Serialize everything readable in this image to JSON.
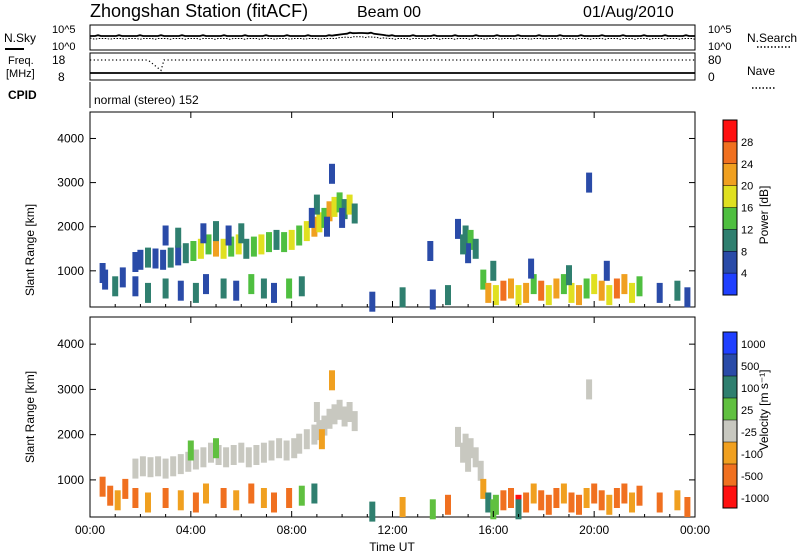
{
  "header": {
    "station": "Zhongshan Station (fitACF)",
    "beam": "Beam 00",
    "date": "01/Aug/2010"
  },
  "strip_panels": {
    "nsky_label": "N.Sky",
    "nsearch_label": "N.Search",
    "freq_label_line1": "Freq.",
    "freq_label_line2": "[MHz]",
    "nave_label": "Nave",
    "cpid_label": "CPID",
    "nsky_ticks": [
      "10^5",
      "10^0"
    ],
    "nsearch_ticks": [
      "10^5",
      "10^0"
    ],
    "freq_ticks": [
      "18",
      "8"
    ],
    "nave_ticks": [
      "80",
      "0"
    ],
    "mode_text": "normal (stereo) 152"
  },
  "colors": {
    "power": [
      "#2040ff",
      "#2a4ba8",
      "#2f7f6f",
      "#4fbf40",
      "#e0e020",
      "#f0a020",
      "#f07020",
      "#ff1010"
    ],
    "velocity": [
      "#ff1010",
      "#f07020",
      "#f0a020",
      "#c8c8c0",
      "#60c040",
      "#2f7f6f",
      "#2a4ba8",
      "#2040ff"
    ]
  },
  "chart_data": [
    {
      "type": "heatmap",
      "name": "power-panel",
      "ylabel": "Slant Range [km]",
      "xlabel": "",
      "x_ticks": [
        "00:00",
        "04:00",
        "08:00",
        "12:00",
        "16:00",
        "20:00",
        "00:00"
      ],
      "x_tick_hours": [
        0,
        4,
        8,
        12,
        16,
        20,
        24
      ],
      "xlim": [
        0,
        24
      ],
      "y_ticks": [
        1000,
        2000,
        3000,
        4000
      ],
      "ylim": [
        180,
        4600
      ],
      "colorbar_label": "Power [dB]",
      "colorbar_ticks": [
        "4",
        "8",
        "12",
        "16",
        "20",
        "24",
        "28"
      ],
      "cells": [
        [
          0.5,
          950,
          1
        ],
        [
          0.6,
          800,
          1
        ],
        [
          1.0,
          650,
          2
        ],
        [
          1.3,
          850,
          1
        ],
        [
          1.8,
          650,
          1
        ],
        [
          2.3,
          500,
          2
        ],
        [
          3.0,
          600,
          2
        ],
        [
          3.6,
          550,
          1
        ],
        [
          4.2,
          500,
          2
        ],
        [
          4.6,
          700,
          1
        ],
        [
          5.3,
          600,
          2
        ],
        [
          5.8,
          550,
          1
        ],
        [
          6.4,
          700,
          3
        ],
        [
          6.9,
          600,
          2
        ],
        [
          7.3,
          500,
          1
        ],
        [
          7.9,
          600,
          3
        ],
        [
          8.4,
          650,
          2
        ],
        [
          1.8,
          1200,
          1
        ],
        [
          2.0,
          1250,
          1
        ],
        [
          2.3,
          1300,
          2
        ],
        [
          2.6,
          1280,
          1
        ],
        [
          2.9,
          1250,
          1
        ],
        [
          3.2,
          1300,
          2
        ],
        [
          3.5,
          1350,
          1
        ],
        [
          3.8,
          1400,
          2
        ],
        [
          4.1,
          1450,
          3
        ],
        [
          4.4,
          1500,
          4
        ],
        [
          4.7,
          1600,
          3
        ],
        [
          5.0,
          1550,
          5
        ],
        [
          5.3,
          1500,
          4
        ],
        [
          5.6,
          1550,
          3
        ],
        [
          5.9,
          1600,
          4
        ],
        [
          6.2,
          1500,
          2
        ],
        [
          6.5,
          1550,
          3
        ],
        [
          6.8,
          1600,
          4
        ],
        [
          7.1,
          1650,
          3
        ],
        [
          7.4,
          1700,
          2
        ],
        [
          7.7,
          1650,
          3
        ],
        [
          8.0,
          1700,
          4
        ],
        [
          3.0,
          1800,
          1
        ],
        [
          3.5,
          1750,
          2
        ],
        [
          4.5,
          1850,
          1
        ],
        [
          5.0,
          1900,
          2
        ],
        [
          5.5,
          1800,
          1
        ],
        [
          6.0,
          1850,
          2
        ],
        [
          8.3,
          1800,
          3
        ],
        [
          8.6,
          1900,
          4
        ],
        [
          8.9,
          2000,
          5
        ],
        [
          9.1,
          2100,
          4
        ],
        [
          9.3,
          2200,
          3
        ],
        [
          9.5,
          2350,
          5
        ],
        [
          9.7,
          2450,
          4
        ],
        [
          9.9,
          2550,
          3
        ],
        [
          10.1,
          2400,
          2
        ],
        [
          10.3,
          2500,
          4
        ],
        [
          10.5,
          2300,
          2
        ],
        [
          9.0,
          2500,
          2
        ],
        [
          9.4,
          2000,
          1
        ],
        [
          8.8,
          2200,
          1
        ],
        [
          10.0,
          2200,
          1
        ],
        [
          14.6,
          1950,
          1
        ],
        [
          14.9,
          1800,
          2
        ],
        [
          15.1,
          1700,
          3
        ],
        [
          15.3,
          1500,
          2
        ],
        [
          15.0,
          1400,
          1
        ],
        [
          14.8,
          1600,
          2
        ],
        [
          13.5,
          1450,
          1
        ],
        [
          15.6,
          800,
          3
        ],
        [
          15.8,
          500,
          5
        ],
        [
          16.1,
          450,
          4
        ],
        [
          16.4,
          550,
          6
        ],
        [
          16.7,
          600,
          5
        ],
        [
          17.0,
          450,
          4
        ],
        [
          17.3,
          500,
          5
        ],
        [
          17.6,
          700,
          3
        ],
        [
          17.9,
          550,
          6
        ],
        [
          18.2,
          450,
          4
        ],
        [
          18.5,
          600,
          5
        ],
        [
          18.8,
          700,
          3
        ],
        [
          19.1,
          500,
          4
        ],
        [
          19.4,
          450,
          5
        ],
        [
          19.7,
          600,
          3
        ],
        [
          20.0,
          700,
          4
        ],
        [
          20.3,
          550,
          5
        ],
        [
          20.6,
          450,
          4
        ],
        [
          20.9,
          600,
          6
        ],
        [
          21.2,
          700,
          5
        ],
        [
          21.5,
          500,
          4
        ],
        [
          21.8,
          650,
          3
        ],
        [
          16.0,
          1000,
          2
        ],
        [
          17.5,
          1050,
          1
        ],
        [
          19.0,
          900,
          2
        ],
        [
          20.5,
          1000,
          1
        ],
        [
          11.2,
          300,
          1
        ],
        [
          12.4,
          400,
          2
        ],
        [
          13.6,
          350,
          1
        ],
        [
          14.2,
          450,
          2
        ],
        [
          22.6,
          500,
          1
        ],
        [
          23.3,
          550,
          2
        ],
        [
          23.7,
          400,
          1
        ],
        [
          9.6,
          3200,
          1
        ],
        [
          19.8,
          3000,
          1
        ]
      ]
    },
    {
      "type": "heatmap",
      "name": "velocity-panel",
      "ylabel": "Slant Range [km]",
      "xlabel": "Time UT",
      "x_ticks": [
        "00:00",
        "04:00",
        "08:00",
        "12:00",
        "16:00",
        "20:00",
        "00:00"
      ],
      "x_tick_hours": [
        0,
        4,
        8,
        12,
        16,
        20,
        24
      ],
      "xlim": [
        0,
        24
      ],
      "y_ticks": [
        1000,
        2000,
        3000,
        4000
      ],
      "ylim": [
        180,
        4600
      ],
      "colorbar_label": "Velocity [m s⁻¹]",
      "colorbar_ticks": [
        "1000",
        "500",
        "100",
        "25",
        "-25",
        "-100",
        "-500",
        "-1000"
      ],
      "cells": [
        [
          0.5,
          850,
          1
        ],
        [
          0.8,
          650,
          1
        ],
        [
          1.1,
          550,
          2
        ],
        [
          1.4,
          800,
          1
        ],
        [
          1.8,
          600,
          1
        ],
        [
          2.3,
          500,
          2
        ],
        [
          3.0,
          600,
          1
        ],
        [
          3.6,
          550,
          2
        ],
        [
          4.2,
          500,
          1
        ],
        [
          4.6,
          700,
          2
        ],
        [
          5.3,
          600,
          1
        ],
        [
          5.8,
          550,
          2
        ],
        [
          6.4,
          700,
          1
        ],
        [
          6.9,
          600,
          2
        ],
        [
          7.3,
          500,
          1
        ],
        [
          7.9,
          600,
          1
        ],
        [
          8.4,
          650,
          4
        ],
        [
          8.9,
          700,
          5
        ],
        [
          1.8,
          1250,
          3
        ],
        [
          2.1,
          1300,
          3
        ],
        [
          2.4,
          1280,
          3
        ],
        [
          2.7,
          1300,
          3
        ],
        [
          3.0,
          1250,
          3
        ],
        [
          3.3,
          1300,
          3
        ],
        [
          3.6,
          1350,
          3
        ],
        [
          3.9,
          1400,
          3
        ],
        [
          4.2,
          1450,
          3
        ],
        [
          4.5,
          1500,
          3
        ],
        [
          4.8,
          1600,
          3
        ],
        [
          5.1,
          1550,
          3
        ],
        [
          5.4,
          1500,
          3
        ],
        [
          5.7,
          1550,
          3
        ],
        [
          6.0,
          1600,
          3
        ],
        [
          6.3,
          1500,
          3
        ],
        [
          6.6,
          1550,
          3
        ],
        [
          6.9,
          1600,
          3
        ],
        [
          7.2,
          1650,
          3
        ],
        [
          7.5,
          1700,
          3
        ],
        [
          7.8,
          1650,
          3
        ],
        [
          8.1,
          1700,
          3
        ],
        [
          4.0,
          1650,
          4
        ],
        [
          5.0,
          1700,
          4
        ],
        [
          8.3,
          1800,
          3
        ],
        [
          8.6,
          1900,
          3
        ],
        [
          8.9,
          2000,
          3
        ],
        [
          9.1,
          2100,
          3
        ],
        [
          9.3,
          2200,
          3
        ],
        [
          9.5,
          2350,
          3
        ],
        [
          9.7,
          2450,
          3
        ],
        [
          9.9,
          2550,
          3
        ],
        [
          10.1,
          2400,
          3
        ],
        [
          10.3,
          2500,
          3
        ],
        [
          10.5,
          2300,
          3
        ],
        [
          9.0,
          2500,
          3
        ],
        [
          9.2,
          1900,
          2
        ],
        [
          14.6,
          1950,
          3
        ],
        [
          14.9,
          1800,
          3
        ],
        [
          15.1,
          1700,
          3
        ],
        [
          15.3,
          1500,
          3
        ],
        [
          15.0,
          1400,
          3
        ],
        [
          14.8,
          1600,
          3
        ],
        [
          15.5,
          1200,
          3
        ],
        [
          15.6,
          800,
          2
        ],
        [
          15.8,
          500,
          5
        ],
        [
          16.1,
          450,
          4
        ],
        [
          16.4,
          550,
          1
        ],
        [
          16.7,
          600,
          1
        ],
        [
          17.0,
          450,
          0
        ],
        [
          17.3,
          500,
          1
        ],
        [
          17.6,
          700,
          2
        ],
        [
          17.9,
          550,
          1
        ],
        [
          18.2,
          450,
          1
        ],
        [
          18.5,
          600,
          1
        ],
        [
          18.8,
          700,
          2
        ],
        [
          19.1,
          500,
          1
        ],
        [
          19.4,
          450,
          1
        ],
        [
          19.7,
          600,
          2
        ],
        [
          20.0,
          700,
          1
        ],
        [
          20.3,
          550,
          1
        ],
        [
          20.6,
          450,
          2
        ],
        [
          20.9,
          600,
          1
        ],
        [
          21.2,
          700,
          1
        ],
        [
          21.5,
          500,
          2
        ],
        [
          21.8,
          650,
          1
        ],
        [
          16.0,
          350,
          4
        ],
        [
          17.0,
          350,
          5
        ],
        [
          11.2,
          300,
          5
        ],
        [
          12.4,
          400,
          2
        ],
        [
          13.6,
          350,
          4
        ],
        [
          14.2,
          450,
          1
        ],
        [
          22.6,
          500,
          1
        ],
        [
          23.3,
          550,
          2
        ],
        [
          23.7,
          400,
          1
        ],
        [
          9.6,
          3200,
          2
        ],
        [
          19.8,
          3000,
          3
        ]
      ]
    }
  ]
}
